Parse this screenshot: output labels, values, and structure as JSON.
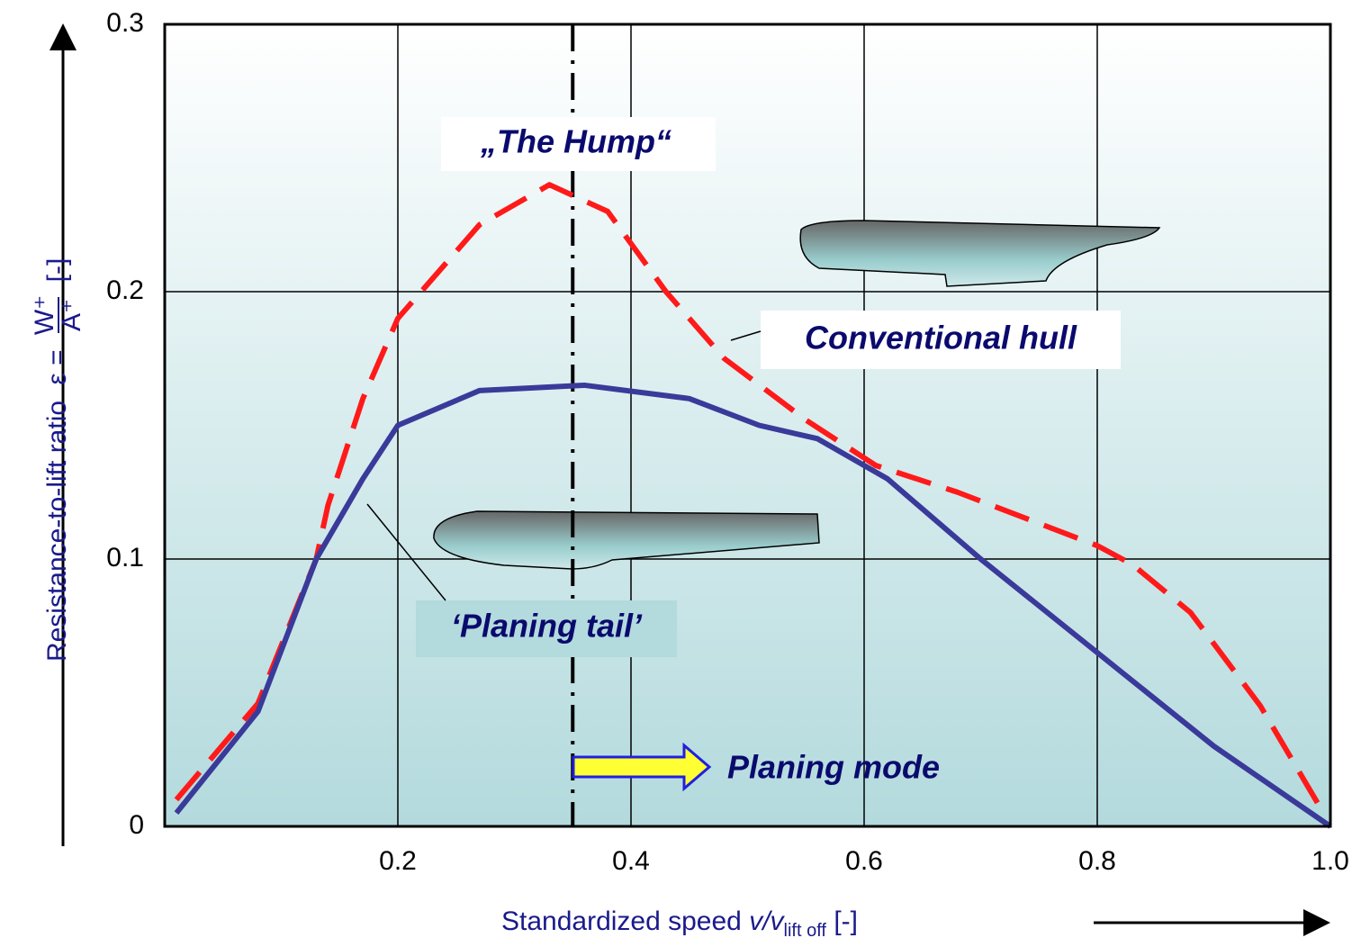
{
  "chart_data": {
    "type": "line",
    "xlabel": [
      "Standardized speed ",
      "v/v",
      "lift off",
      " [-]"
    ],
    "ylabel": [
      "Resistance-to-lift ratio",
      "ε =",
      "W⁺",
      "A⁺",
      "[-]"
    ],
    "xlim": [
      0,
      1
    ],
    "ylim": [
      0,
      0.3
    ],
    "xticks": [
      0.2,
      0.4,
      0.6,
      0.8,
      {
        "value": 1,
        "label": "1.0"
      }
    ],
    "yticks": [
      0,
      0.1,
      0.2,
      0.3
    ],
    "grid": true,
    "series": [
      {
        "color": "#ff1a1a",
        "dash": true,
        "x": [
          0.01,
          0.08,
          0.13,
          0.14,
          0.17,
          0.2,
          0.27,
          0.33,
          0.38,
          0.43,
          0.48,
          0.55,
          0.61,
          0.68,
          0.8,
          0.83,
          0.88,
          0.94,
          0.99
        ],
        "values": [
          0.01,
          0.046,
          0.1,
          0.12,
          0.16,
          0.19,
          0.225,
          0.24,
          0.23,
          0.2,
          0.175,
          0.152,
          0.135,
          0.125,
          0.105,
          0.098,
          0.08,
          0.045,
          0.008
        ]
      },
      {
        "color": "#3a3a9a",
        "dash": false,
        "x": [
          0.01,
          0.08,
          0.13,
          0.17,
          0.2,
          0.27,
          0.36,
          0.45,
          0.51,
          0.56,
          0.62,
          0.7,
          0.8,
          0.9,
          1.0
        ],
        "values": [
          0.005,
          0.043,
          0.1,
          0.13,
          0.15,
          0.163,
          0.165,
          0.16,
          0.15,
          0.145,
          0.13,
          0.1,
          0.065,
          0.03,
          0
        ]
      }
    ],
    "reference_x": 0.35,
    "annotations": [
      "„The Hump“",
      "Conventional hull",
      "‘Planing tail’",
      "Planing mode"
    ]
  }
}
